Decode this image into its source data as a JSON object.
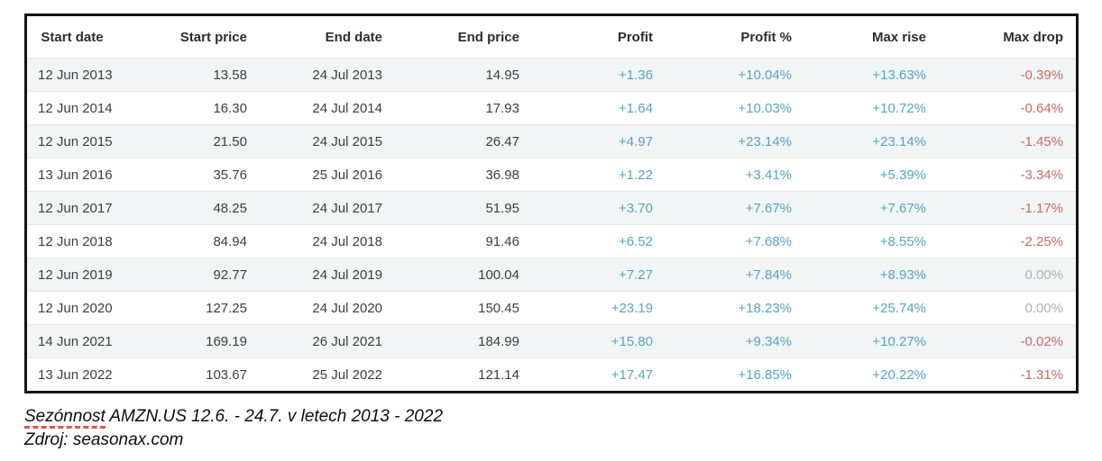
{
  "table": {
    "columns": [
      "Start date",
      "Start price",
      "End date",
      "End price",
      "Profit",
      "Profit %",
      "Max rise",
      "Max drop"
    ],
    "rows": [
      [
        "12 Jun 2013",
        "13.58",
        "24 Jul 2013",
        "14.95",
        "+1.36",
        "+10.04%",
        "+13.63%",
        "-0.39%"
      ],
      [
        "12 Jun 2014",
        "16.30",
        "24 Jul 2014",
        "17.93",
        "+1.64",
        "+10.03%",
        "+10.72%",
        "-0.64%"
      ],
      [
        "12 Jun 2015",
        "21.50",
        "24 Jul 2015",
        "26.47",
        "+4.97",
        "+23.14%",
        "+23.14%",
        "-1.45%"
      ],
      [
        "13 Jun 2016",
        "35.76",
        "25 Jul 2016",
        "36.98",
        "+1.22",
        "+3.41%",
        "+5.39%",
        "-3.34%"
      ],
      [
        "12 Jun 2017",
        "48.25",
        "24 Jul 2017",
        "51.95",
        "+3.70",
        "+7.67%",
        "+7.67%",
        "-1.17%"
      ],
      [
        "12 Jun 2018",
        "84.94",
        "24 Jul 2018",
        "91.46",
        "+6.52",
        "+7.68%",
        "+8.55%",
        "-2.25%"
      ],
      [
        "12 Jun 2019",
        "92.77",
        "24 Jul 2019",
        "100.04",
        "+7.27",
        "+7.84%",
        "+8.93%",
        "0.00%"
      ],
      [
        "12 Jun 2020",
        "127.25",
        "24 Jul 2020",
        "150.45",
        "+23.19",
        "+18.23%",
        "+25.74%",
        "0.00%"
      ],
      [
        "14 Jun 2021",
        "169.19",
        "26 Jul 2021",
        "184.99",
        "+15.80",
        "+9.34%",
        "+10.27%",
        "-0.02%"
      ],
      [
        "13 Jun 2022",
        "103.67",
        "25 Jul 2022",
        "121.14",
        "+17.47",
        "+16.85%",
        "+20.22%",
        "-1.31%"
      ]
    ]
  },
  "caption": {
    "underlined_word": "Sezónnost",
    "rest": " AMZN.US 12.6. - 24.7. v letech 2013 - 2022",
    "source": "Zdroj: seasonax.com"
  },
  "colors": {
    "positive": "#57a5c1",
    "negative": "#cb6a64",
    "zero": "#b3b3b3",
    "alt_row_bg": "#f2f5f6",
    "frame_border": "#141414",
    "spellcheck_underline": "#e2574c"
  },
  "chart_data": {
    "type": "table",
    "title": "Sezónnost AMZN.US 12.6. - 24.7. v letech 2013 - 2022",
    "source": "Zdroj: seasonax.com",
    "columns": [
      "Start date",
      "Start price",
      "End date",
      "End price",
      "Profit",
      "Profit %",
      "Max rise",
      "Max drop"
    ],
    "rows": [
      [
        "12 Jun 2013",
        13.58,
        "24 Jul 2013",
        14.95,
        1.36,
        10.04,
        13.63,
        -0.39
      ],
      [
        "12 Jun 2014",
        16.3,
        "24 Jul 2014",
        17.93,
        1.64,
        10.03,
        10.72,
        -0.64
      ],
      [
        "12 Jun 2015",
        21.5,
        "24 Jul 2015",
        26.47,
        4.97,
        23.14,
        23.14,
        -1.45
      ],
      [
        "13 Jun 2016",
        35.76,
        "25 Jul 2016",
        36.98,
        1.22,
        3.41,
        5.39,
        -3.34
      ],
      [
        "12 Jun 2017",
        48.25,
        "24 Jul 2017",
        51.95,
        3.7,
        7.67,
        7.67,
        -1.17
      ],
      [
        "12 Jun 2018",
        84.94,
        "24 Jul 2018",
        91.46,
        6.52,
        7.68,
        8.55,
        -2.25
      ],
      [
        "12 Jun 2019",
        92.77,
        "24 Jul 2019",
        100.04,
        7.27,
        7.84,
        8.93,
        0.0
      ],
      [
        "12 Jun 2020",
        127.25,
        "24 Jul 2020",
        150.45,
        23.19,
        18.23,
        25.74,
        0.0
      ],
      [
        "14 Jun 2021",
        169.19,
        "26 Jul 2021",
        184.99,
        15.8,
        9.34,
        10.27,
        -0.02
      ],
      [
        "13 Jun 2022",
        103.67,
        "25 Jul 2022",
        121.14,
        17.47,
        16.85,
        20.22,
        -1.31
      ]
    ]
  }
}
